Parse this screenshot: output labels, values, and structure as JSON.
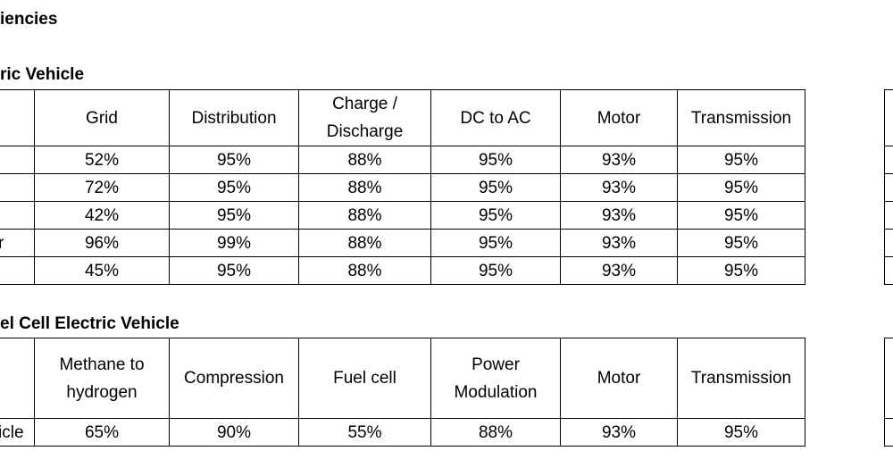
{
  "header": {
    "title": "iencies"
  },
  "tables": [
    {
      "title": "ric Vehicle",
      "columns": [
        [
          "Grid"
        ],
        [
          "Distribution"
        ],
        [
          "Charge /",
          "Discharge"
        ],
        [
          "DC to AC"
        ],
        [
          "Motor"
        ],
        [
          "Transmission"
        ]
      ],
      "rows": [
        {
          "cells": [
            "52%",
            "95%",
            "88%",
            "95%",
            "93%",
            "95%"
          ]
        },
        {
          "cells": [
            "72%",
            "95%",
            "88%",
            "95%",
            "93%",
            "95%"
          ]
        },
        {
          "cells": [
            "42%",
            "95%",
            "88%",
            "95%",
            "93%",
            "95%"
          ]
        },
        {
          "label": "r",
          "cells": [
            "96%",
            "99%",
            "88%",
            "95%",
            "93%",
            "95%"
          ]
        },
        {
          "cells": [
            "45%",
            "95%",
            "88%",
            "95%",
            "93%",
            "95%"
          ]
        }
      ]
    },
    {
      "title": "el Cell Electric Vehicle",
      "columns": [
        [
          "Methane to",
          "hydrogen"
        ],
        [
          "Compression"
        ],
        [
          "Fuel cell"
        ],
        [
          "Power",
          "Modulation"
        ],
        [
          "Motor"
        ],
        [
          "Transmission"
        ]
      ],
      "rows": [
        {
          "label": "icle",
          "cells": [
            "65%",
            "90%",
            "55%",
            "88%",
            "93%",
            "95%"
          ]
        }
      ]
    }
  ]
}
